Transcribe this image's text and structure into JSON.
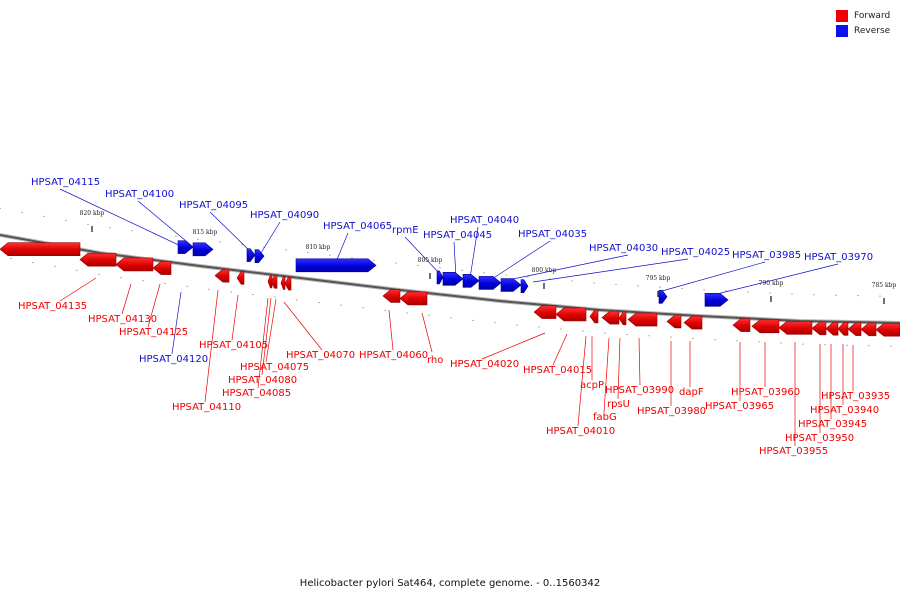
{
  "legend": {
    "forward_label": "Forward",
    "reverse_label": "Reverse",
    "forward_color": "#ee0000",
    "reverse_color": "#1010ee"
  },
  "caption": "Helicobacter pylori Sat464, complete genome. - 0..1560342",
  "scale_ticks": [
    "820 kbp",
    "815 kbp",
    "810 kbp",
    "805 kbp",
    "800 kbp",
    "795 kbp",
    "790 kbp",
    "785 kbp"
  ],
  "genes_forward": [
    "HPSAT_04135",
    "HPSAT_04130",
    "HPSAT_04125",
    "HPSAT_04110",
    "HPSAT_04105",
    "HPSAT_04085",
    "HPSAT_04080",
    "HPSAT_04075",
    "HPSAT_04070",
    "HPSAT_04060",
    "rho",
    "HPSAT_04020",
    "HPSAT_04015",
    "HPSAT_04010",
    "acpP",
    "fabG",
    "rpsU",
    "HPSAT_03990",
    "HPSAT_03980",
    "dapF",
    "HPSAT_03965",
    "HPSAT_03960",
    "HPSAT_03955",
    "HPSAT_03950",
    "HPSAT_03945",
    "HPSAT_03940",
    "HPSAT_03935"
  ],
  "genes_reverse": [
    "HPSAT_04115",
    "HPSAT_04100",
    "HPSAT_04095",
    "HPSAT_04090",
    "HPSAT_04065",
    "rpmE",
    "HPSAT_04040",
    "HPSAT_04045",
    "HPSAT_04035",
    "HPSAT_04030",
    "HPSAT_04025",
    "HPSAT_03985",
    "HPSAT_03970",
    "HPSAT_04120"
  ]
}
